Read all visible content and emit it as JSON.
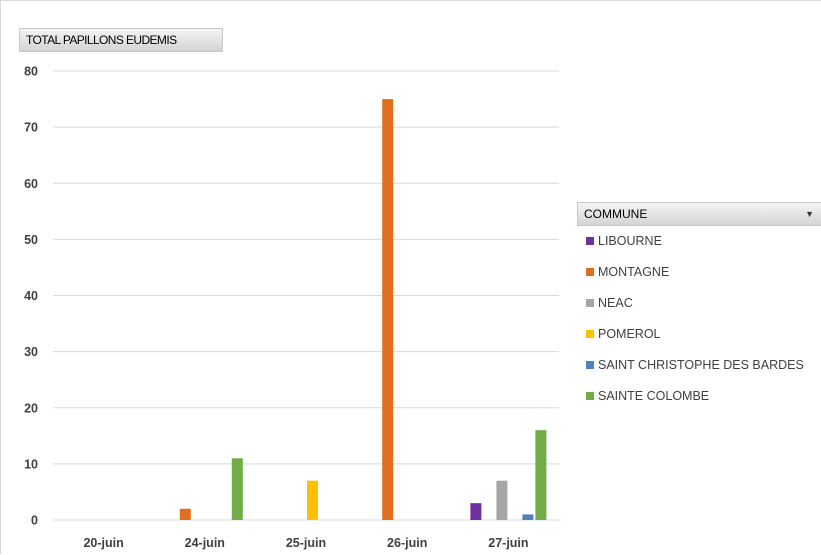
{
  "chart_data": {
    "type": "bar",
    "title": "",
    "value_field_label": "TOTAL PAPILLONS EUDEMIS",
    "legend_title": "COMMUNE",
    "categories": [
      "20-juin",
      "24-juin",
      "25-juin",
      "26-juin",
      "27-juin"
    ],
    "ylim": [
      0,
      80
    ],
    "yticks": [
      "0",
      "10",
      "20",
      "30",
      "40",
      "50",
      "60",
      "70",
      "80"
    ],
    "grid": true,
    "legend_position": "right",
    "series": [
      {
        "name": "LIBOURNE",
        "color": "#7030a0",
        "values": [
          0,
          0,
          0,
          0,
          3
        ]
      },
      {
        "name": "MONTAGNE",
        "color": "#e07020",
        "values": [
          0,
          2,
          0,
          75,
          0
        ]
      },
      {
        "name": "NEAC",
        "color": "#a5a5a5",
        "values": [
          0,
          0,
          0,
          0,
          7
        ]
      },
      {
        "name": "POMEROL",
        "color": "#ffc000",
        "values": [
          0,
          0,
          7,
          0,
          0
        ]
      },
      {
        "name": "SAINT CHRISTOPHE DES BARDES",
        "color": "#4f81bd",
        "values": [
          0,
          0,
          0,
          0,
          1
        ]
      },
      {
        "name": "SAINTE COLOMBE",
        "color": "#70ad47",
        "values": [
          0,
          11,
          0,
          0,
          16
        ]
      }
    ]
  }
}
